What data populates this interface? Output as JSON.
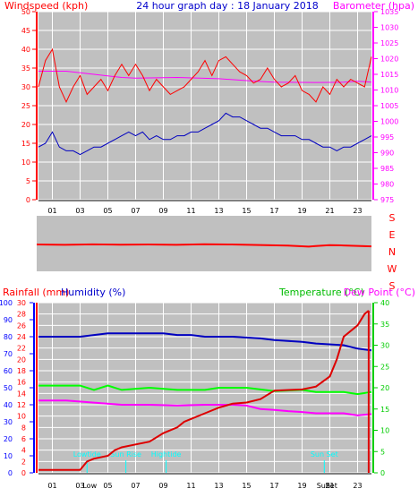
{
  "chart_data": [
    {
      "type": "line",
      "title": "24 hour graph day : 18 January 2018",
      "ylabel": "Windspeed (kph)",
      "ylabel_right": "Barometer (hpa)",
      "x_ticks": [
        "01",
        "03",
        "05",
        "07",
        "09",
        "11",
        "13",
        "15",
        "17",
        "19",
        "21",
        "23"
      ],
      "y_ticks": [
        "0",
        "5",
        "10",
        "15",
        "20",
        "25",
        "30",
        "35",
        "40",
        "45",
        "50"
      ],
      "y_ticks_right": [
        "975",
        "980",
        "985",
        "990",
        "995",
        "1000",
        "1005",
        "1010",
        "1015",
        "1020",
        "1025",
        "1030",
        "1035"
      ],
      "xlim": [
        0,
        24
      ],
      "ylim": [
        0,
        50
      ],
      "ylim_right": [
        975,
        1035
      ],
      "grid": true,
      "series": [
        {
          "values": [
            [
              0,
              30
            ],
            [
              0.5,
              37
            ],
            [
              1,
              40
            ],
            [
              1.5,
              30
            ],
            [
              2,
              26
            ],
            [
              2.5,
              30
            ],
            [
              3,
              33
            ],
            [
              3.5,
              28
            ],
            [
              4,
              30
            ],
            [
              4.5,
              32
            ],
            [
              5,
              29
            ],
            [
              5.5,
              33
            ],
            [
              6,
              36
            ],
            [
              6.5,
              33
            ],
            [
              7,
              36
            ],
            [
              7.5,
              33
            ],
            [
              8,
              29
            ],
            [
              8.5,
              32
            ],
            [
              9,
              30
            ],
            [
              9.5,
              28
            ],
            [
              10,
              29
            ],
            [
              10.5,
              30
            ],
            [
              11,
              32
            ],
            [
              11.5,
              34
            ],
            [
              12,
              37
            ],
            [
              12.5,
              33
            ],
            [
              13,
              37
            ],
            [
              13.5,
              38
            ],
            [
              14,
              36
            ],
            [
              14.5,
              34
            ],
            [
              15,
              33
            ],
            [
              15.5,
              31
            ],
            [
              16,
              32
            ],
            [
              16.5,
              35
            ],
            [
              17,
              32
            ],
            [
              17.5,
              30
            ],
            [
              18,
              31
            ],
            [
              18.5,
              33
            ],
            [
              19,
              29
            ],
            [
              19.5,
              28
            ],
            [
              20,
              26
            ],
            [
              20.5,
              30
            ],
            [
              21,
              28
            ],
            [
              21.5,
              32
            ],
            [
              22,
              30
            ],
            [
              22.5,
              32
            ],
            [
              23,
              31
            ],
            [
              23.5,
              30
            ],
            [
              24,
              38
            ]
          ]
        },
        {
          "values": [
            [
              0,
              14
            ],
            [
              0.5,
              15
            ],
            [
              1,
              18
            ],
            [
              1.5,
              14
            ],
            [
              2,
              13
            ],
            [
              2.5,
              13
            ],
            [
              3,
              12
            ],
            [
              3.5,
              13
            ],
            [
              4,
              14
            ],
            [
              4.5,
              14
            ],
            [
              5,
              15
            ],
            [
              5.5,
              16
            ],
            [
              6,
              17
            ],
            [
              6.5,
              18
            ],
            [
              7,
              17
            ],
            [
              7.5,
              18
            ],
            [
              8,
              16
            ],
            [
              8.5,
              17
            ],
            [
              9,
              16
            ],
            [
              9.5,
              16
            ],
            [
              10,
              17
            ],
            [
              10.5,
              17
            ],
            [
              11,
              18
            ],
            [
              11.5,
              18
            ],
            [
              12,
              19
            ],
            [
              12.5,
              20
            ],
            [
              13,
              21
            ],
            [
              13.5,
              23
            ],
            [
              14,
              22
            ],
            [
              14.5,
              22
            ],
            [
              15,
              21
            ],
            [
              15.5,
              20
            ],
            [
              16,
              19
            ],
            [
              16.5,
              19
            ],
            [
              17,
              18
            ],
            [
              17.5,
              17
            ],
            [
              18,
              17
            ],
            [
              18.5,
              17
            ],
            [
              19,
              16
            ],
            [
              19.5,
              16
            ],
            [
              20,
              15
            ],
            [
              20.5,
              14
            ],
            [
              21,
              14
            ],
            [
              21.5,
              13
            ],
            [
              22,
              14
            ],
            [
              22.5,
              14
            ],
            [
              23,
              15
            ],
            [
              23.5,
              16
            ],
            [
              24,
              17
            ]
          ]
        },
        {
          "values": [
            [
              0,
              1016
            ],
            [
              2,
              1016
            ],
            [
              3,
              1015.5
            ],
            [
              4,
              1015
            ],
            [
              6,
              1014
            ],
            [
              7,
              1013.8
            ],
            [
              10,
              1014
            ],
            [
              13,
              1013.6
            ],
            [
              15,
              1013
            ],
            [
              16,
              1012.7
            ],
            [
              17,
              1012.5
            ],
            [
              20,
              1012.4
            ],
            [
              22,
              1012.5
            ],
            [
              23,
              1012.8
            ],
            [
              24,
              1012.5
            ]
          ]
        }
      ]
    },
    {
      "type": "line",
      "y_ticks": [
        "S",
        "E",
        "N",
        "W",
        "S"
      ],
      "xlim": [
        0,
        24
      ],
      "ylim": [
        0,
        360
      ],
      "series": [
        {
          "values": [
            [
              0,
              186
            ],
            [
              2,
              188
            ],
            [
              4,
              185
            ],
            [
              6,
              187
            ],
            [
              8,
              186
            ],
            [
              10,
              188
            ],
            [
              12,
              184
            ],
            [
              14,
              186
            ],
            [
              16,
              189
            ],
            [
              18,
              193
            ],
            [
              19.5,
              200
            ],
            [
              20,
              196
            ],
            [
              21,
              190
            ],
            [
              22,
              192
            ],
            [
              23,
              195
            ],
            [
              24,
              198
            ]
          ]
        }
      ]
    },
    {
      "type": "line",
      "ylabel": "Rainfall (mm)",
      "ylabel2": "Humidity (%)",
      "ylabel_right": "Temperature (°C)",
      "ylabel_right2": "Dew Point (°C)",
      "x_ticks": [
        "01",
        "03",
        "05",
        "07",
        "09",
        "11",
        "13",
        "15",
        "17",
        "19",
        "21",
        "23"
      ],
      "y_ticks_humidity": [
        "0",
        "10",
        "20",
        "30",
        "40",
        "50",
        "60",
        "70",
        "80",
        "90",
        "100"
      ],
      "y_ticks_rain": [
        "0",
        "2",
        "4",
        "6",
        "8",
        "10",
        "12",
        "14",
        "16",
        "18",
        "20",
        "22",
        "24",
        "26",
        "28",
        "30"
      ],
      "y_ticks_right": [
        "0",
        "5",
        "10",
        "15",
        "20",
        "25",
        "30",
        "35",
        "40"
      ],
      "xlim": [
        0,
        24
      ],
      "ylim_humidity": [
        0,
        100
      ],
      "ylim_rain": [
        0,
        30
      ],
      "ylim_right": [
        0,
        40
      ],
      "grid": true,
      "annotations": [
        {
          "text": "Lowtide",
          "x": 3.5
        },
        {
          "text": "Sun Rise",
          "x": 6.3
        },
        {
          "text": "Hightide",
          "x": 9.2
        },
        {
          "text": "Sun Set",
          "x": 20.6
        }
      ],
      "x_overlap_labels": [
        "Low",
        "Sun",
        "Set"
      ],
      "series": [
        {
          "values": [
            [
              0,
              0.5
            ],
            [
              1,
              0.5
            ],
            [
              3,
              0.5
            ],
            [
              3.5,
              2
            ],
            [
              4,
              2.5
            ],
            [
              5,
              3
            ],
            [
              5.5,
              4
            ],
            [
              6,
              4.5
            ],
            [
              7,
              5
            ],
            [
              8,
              5.5
            ],
            [
              9,
              7
            ],
            [
              10,
              8
            ],
            [
              10.5,
              9
            ],
            [
              11,
              9.5
            ],
            [
              12,
              10.5
            ],
            [
              13,
              11.5
            ],
            [
              14,
              12.2
            ],
            [
              15,
              12.4
            ],
            [
              16,
              13
            ],
            [
              17,
              14.5
            ],
            [
              18,
              14.6
            ],
            [
              19,
              14.7
            ],
            [
              20,
              15.2
            ],
            [
              21,
              17
            ],
            [
              21.5,
              20
            ],
            [
              22,
              24
            ],
            [
              23,
              26
            ],
            [
              23.5,
              28
            ],
            [
              23.8,
              28.6
            ]
          ]
        },
        {
          "values": [
            [
              0,
              80
            ],
            [
              3,
              80
            ],
            [
              5,
              82
            ],
            [
              9,
              82
            ],
            [
              10,
              81
            ],
            [
              11,
              81
            ],
            [
              12,
              80
            ],
            [
              14,
              80
            ],
            [
              16,
              79
            ],
            [
              17,
              78
            ],
            [
              19,
              77
            ],
            [
              20,
              76
            ],
            [
              22,
              75
            ],
            [
              23,
              73
            ],
            [
              24,
              72
            ]
          ]
        },
        {
          "values": [
            [
              0,
              20.5
            ],
            [
              3,
              20.5
            ],
            [
              4,
              19.5
            ],
            [
              5,
              20.5
            ],
            [
              6,
              19.5
            ],
            [
              8,
              20
            ],
            [
              10,
              19.5
            ],
            [
              12,
              19.5
            ],
            [
              13,
              20
            ],
            [
              15,
              20
            ],
            [
              17,
              19.2
            ],
            [
              19,
              19.5
            ],
            [
              20,
              19
            ],
            [
              22,
              19
            ],
            [
              23,
              18.5
            ],
            [
              24,
              19
            ]
          ]
        },
        {
          "values": [
            [
              0,
              17
            ],
            [
              2,
              17
            ],
            [
              4,
              16.5
            ],
            [
              6,
              16
            ],
            [
              8,
              16
            ],
            [
              10,
              15.8
            ],
            [
              12,
              16
            ],
            [
              14,
              16
            ],
            [
              15,
              15.8
            ],
            [
              16,
              15
            ],
            [
              17,
              14.8
            ],
            [
              18,
              14.5
            ],
            [
              19,
              14.3
            ],
            [
              20,
              14
            ],
            [
              21,
              14
            ],
            [
              22,
              14
            ],
            [
              23,
              13.5
            ],
            [
              24,
              13.8
            ]
          ]
        }
      ]
    }
  ],
  "colors": {
    "plot_bg": "#c0c0c0",
    "grid": "#ffffff",
    "axis_left": "#ff0000",
    "axis_humidity": "#0000ff",
    "axis_baro": "#ff00ff",
    "axis_temp": "#00cc00",
    "wind": "#ff0000",
    "gust": "#0000c0",
    "baro": "#ff00ff",
    "dir": "#ff0000",
    "rain": "#dd0000",
    "humidity": "#0000c0",
    "temp": "#00ff00",
    "dew": "#ff00ff",
    "marker": "#00ffff"
  }
}
